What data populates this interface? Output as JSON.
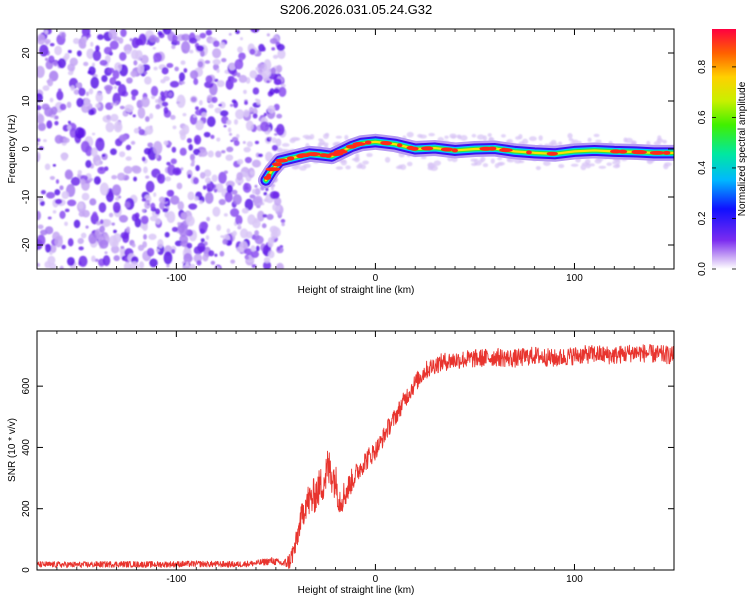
{
  "figure_title": "S206.2026.031.05.24.G32",
  "chart_data": [
    {
      "type": "heatmap",
      "xlabel": "Height of straight line (km)",
      "ylabel": "Frequency (Hz)",
      "xlim": [
        -170,
        150
      ],
      "ylim": [
        -25,
        25
      ],
      "xticks": [
        -100,
        0,
        100
      ],
      "yticks": [
        -20,
        -10,
        0,
        10,
        20
      ],
      "colorbar": {
        "label": "Normalized spectral amplitude",
        "ticks": [
          0.0,
          0.2,
          0.4,
          0.6,
          0.8
        ],
        "range": [
          0,
          0.95
        ],
        "colormap": "rainbow"
      },
      "noise_region_x": [
        -170,
        -52
      ],
      "ridge": [
        {
          "x": -55,
          "y": -6.5
        },
        {
          "x": -52,
          "y": -4.5
        },
        {
          "x": -48,
          "y": -2.5
        },
        {
          "x": -43,
          "y": -2.0
        },
        {
          "x": -38,
          "y": -1.5
        },
        {
          "x": -33,
          "y": -1.0
        },
        {
          "x": -28,
          "y": -1.2
        },
        {
          "x": -22,
          "y": -1.5
        },
        {
          "x": -17,
          "y": -0.5
        },
        {
          "x": -12,
          "y": 0.5
        },
        {
          "x": -7,
          "y": 1.2
        },
        {
          "x": 0,
          "y": 1.5
        },
        {
          "x": 10,
          "y": 1.0
        },
        {
          "x": 20,
          "y": 0.0
        },
        {
          "x": 30,
          "y": 0.2
        },
        {
          "x": 40,
          "y": -0.3
        },
        {
          "x": 50,
          "y": 0.0
        },
        {
          "x": 60,
          "y": 0.1
        },
        {
          "x": 70,
          "y": -0.5
        },
        {
          "x": 80,
          "y": -0.8
        },
        {
          "x": 90,
          "y": -1.0
        },
        {
          "x": 100,
          "y": -0.5
        },
        {
          "x": 110,
          "y": -0.3
        },
        {
          "x": 120,
          "y": -0.5
        },
        {
          "x": 130,
          "y": -0.6
        },
        {
          "x": 140,
          "y": -0.8
        },
        {
          "x": 150,
          "y": -0.8
        }
      ]
    },
    {
      "type": "line",
      "xlabel": "Height of straight line (km)",
      "ylabel": "SNR (10 * v/v)",
      "xlim": [
        -170,
        150
      ],
      "ylim": [
        0,
        780
      ],
      "xticks": [
        -100,
        0,
        100
      ],
      "yticks": [
        0,
        200,
        400,
        600
      ],
      "color": "#e8342e",
      "series": [
        {
          "x": [
            -170,
            -150,
            -130,
            -110,
            -90,
            -70,
            -60,
            -52,
            -46,
            -43,
            -40,
            -38,
            -35,
            -32,
            -29,
            -26,
            -24,
            -22,
            -20,
            -18,
            -15,
            -12,
            -9,
            -6,
            -3,
            0,
            3,
            6,
            10,
            15,
            20,
            25,
            30,
            35,
            40,
            50,
            60,
            70,
            80,
            90,
            100,
            110,
            120,
            130,
            140,
            150
          ],
          "values": [
            18,
            17,
            19,
            18,
            20,
            18,
            22,
            30,
            20,
            30,
            80,
            150,
            220,
            230,
            260,
            290,
            330,
            320,
            290,
            230,
            250,
            290,
            320,
            350,
            370,
            390,
            420,
            460,
            500,
            560,
            610,
            650,
            670,
            680,
            685,
            690,
            695,
            690,
            700,
            690,
            700,
            705,
            700,
            710,
            705,
            700
          ],
          "noise": [
            10,
            10,
            10,
            10,
            10,
            10,
            10,
            12,
            12,
            30,
            40,
            40,
            55,
            60,
            60,
            65,
            70,
            70,
            60,
            55,
            45,
            40,
            35,
            35,
            35,
            30,
            30,
            30,
            30,
            30,
            30,
            30,
            30,
            30,
            30,
            30,
            30,
            30,
            30,
            30,
            30,
            30,
            30,
            30,
            30,
            30
          ]
        }
      ]
    }
  ]
}
